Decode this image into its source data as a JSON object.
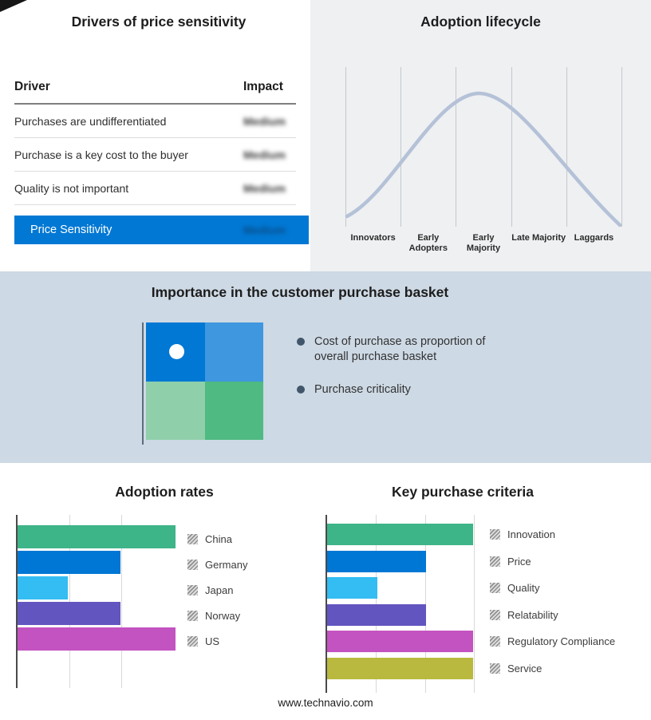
{
  "page": {
    "footer_url": "www.technavio.com"
  },
  "drivers_panel": {
    "title": "Drivers of price sensitivity",
    "columns": {
      "driver": "Driver",
      "impact": "Impact"
    },
    "rows": [
      {
        "driver": "Purchases are undifferentiated",
        "impact": "Medium"
      },
      {
        "driver": "Purchase is a key cost to the buyer",
        "impact": "Medium"
      },
      {
        "driver": "Quality is not important",
        "impact": "Medium"
      }
    ],
    "summary": {
      "label": "Price Sensitivity",
      "impact": "Medium"
    },
    "accent_color": "#0078d4"
  },
  "lifecycle_panel": {
    "title": "Adoption lifecycle",
    "stages": [
      "Innovators",
      "Early Adopters",
      "Early Majority",
      "Late Majority",
      "Laggards"
    ],
    "curve_color": "#b4c1d7"
  },
  "basket_panel": {
    "title": "Importance in the customer purchase basket",
    "bullets": [
      "Cost of purchase as proportion of overall purchase basket",
      "Purchase criticality"
    ],
    "quadrant_colors": [
      "#0078d4",
      "#3f97df",
      "#8fcfaa",
      "#4fba81"
    ],
    "band_color": "#cdd9e4"
  },
  "chart_data": [
    {
      "type": "line",
      "title": "Adoption lifecycle",
      "x": [
        "Innovators",
        "Early Adopters",
        "Early Majority",
        "Late Majority",
        "Laggards"
      ],
      "values": [
        5,
        45,
        100,
        50,
        4
      ],
      "description": "Bell-shaped adoption curve peaking at Early Majority; vertical section dividers, no numeric axes",
      "xlabel": "",
      "ylabel": "",
      "legend": "none"
    },
    {
      "type": "bar",
      "orientation": "horizontal",
      "title": "Adoption rates",
      "categories": [
        "China",
        "Germany",
        "Japan",
        "Norway",
        "US"
      ],
      "values": [
        100,
        65,
        32,
        65,
        100
      ],
      "value_scale": "relative (axis unlabeled, estimated from gridlines: Japan=1, Germany/Norway=2, China/US=3 units)",
      "colors": [
        "#3eb489",
        "#0077d4",
        "#33bdf2",
        "#6355bf",
        "#c353c0"
      ],
      "gridlines_pct": [
        33,
        65.5
      ],
      "legend_position": "right"
    },
    {
      "type": "bar",
      "orientation": "horizontal",
      "title": "Key purchase criteria",
      "categories": [
        "Innovation",
        "Price",
        "Quality",
        "Relatability",
        "Regulatory Compliance",
        "Service"
      ],
      "values": [
        92.5,
        62.5,
        32,
        62.5,
        92.5,
        92.5
      ],
      "value_scale": "relative (axis unlabeled, estimated from gridlines: Quality=1, Price/Relatability=2, others=3 units)",
      "colors": [
        "#3eb489",
        "#0077d4",
        "#33bdf2",
        "#6355bf",
        "#c353c0",
        "#b9b93f"
      ],
      "gridlines_pct": [
        31,
        62,
        93
      ],
      "legend_position": "right"
    }
  ]
}
